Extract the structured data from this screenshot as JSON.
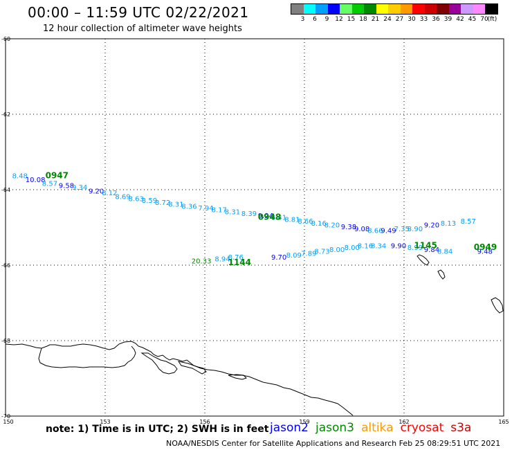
{
  "title": "00:00 – 11:59 UTC 02/22/2021",
  "subtitle": "12 hour collection of altimeter wave heights",
  "legend": {
    "colors": [
      "#808080",
      "#00ffff",
      "#00a0ff",
      "#0000ff",
      "#66ff66",
      "#00cc00",
      "#008800",
      "#ffff00",
      "#ffcc00",
      "#ff9900",
      "#ff0000",
      "#cc0000",
      "#800000",
      "#990099",
      "#cc99ff",
      "#ff88ff",
      "#000000"
    ],
    "labels": [
      "3",
      "6",
      "9",
      "12",
      "15",
      "18",
      "21",
      "24",
      "27",
      "30",
      "33",
      "36",
      "39",
      "42",
      "45",
      "70",
      "(ft)"
    ]
  },
  "axes": {
    "lon_ticks": [
      "150",
      "153",
      "156",
      "159",
      "162",
      "165"
    ],
    "lat_ticks": [
      "-60",
      "-62",
      "-64",
      "-66",
      "-68",
      "-70"
    ]
  },
  "note": "note: 1) Time is in UTC; 2) SWH is in feet",
  "satellites": [
    {
      "name": "jason2",
      "color": "#0000ff"
    },
    {
      "name": "jason3",
      "color": "#008800"
    },
    {
      "name": "altika",
      "color": "#ff9900"
    },
    {
      "name": "cryosat",
      "color": "#ff0000"
    },
    {
      "name": "s3a",
      "color": "#cc0000"
    }
  ],
  "credit": "NOAA/NESDIS Center for Satellite Applications and Research    Feb 25 08:29:51 UTC 2021",
  "track_times": [
    {
      "text": "0947",
      "color": "#008800",
      "lon": 151.2,
      "lat": -63.7
    },
    {
      "text": "0948",
      "color": "#008800",
      "lon": 157.6,
      "lat": -64.8
    },
    {
      "text": "1144",
      "color": "#008800",
      "lon": 156.7,
      "lat": -66.0
    },
    {
      "text": "1145",
      "color": "#008800",
      "lon": 162.3,
      "lat": -65.55
    },
    {
      "text": "0949",
      "color": "#008800",
      "lon": 164.1,
      "lat": -65.6
    }
  ],
  "swh_labels": [
    {
      "text": "8.48",
      "color": "#00a0ff",
      "lon": 150.2,
      "lat": -63.7
    },
    {
      "text": "10.08",
      "color": "#0000ff",
      "lon": 150.6,
      "lat": -63.8
    },
    {
      "text": "8.57",
      "color": "#00a0ff",
      "lon": 151.1,
      "lat": -63.9
    },
    {
      "text": "9.58",
      "color": "#0000ff",
      "lon": 151.6,
      "lat": -63.95
    },
    {
      "text": "9.34",
      "color": "#00a0ff",
      "lon": 152.0,
      "lat": -64.0
    },
    {
      "text": "9.20",
      "color": "#0000ff",
      "lon": 152.5,
      "lat": -64.1
    },
    {
      "text": "8.12",
      "color": "#00a0ff",
      "lon": 152.9,
      "lat": -64.15
    },
    {
      "text": "8.69",
      "color": "#00a0ff",
      "lon": 153.3,
      "lat": -64.25
    },
    {
      "text": "8.63",
      "color": "#00a0ff",
      "lon": 153.7,
      "lat": -64.3
    },
    {
      "text": "8.59",
      "color": "#00a0ff",
      "lon": 154.1,
      "lat": -64.35
    },
    {
      "text": "8.72",
      "color": "#00a0ff",
      "lon": 154.5,
      "lat": -64.4
    },
    {
      "text": "8.31",
      "color": "#00a0ff",
      "lon": 154.9,
      "lat": -64.45
    },
    {
      "text": "8.36",
      "color": "#00a0ff",
      "lon": 155.3,
      "lat": -64.5
    },
    {
      "text": "7.94",
      "color": "#00a0ff",
      "lon": 155.8,
      "lat": -64.55
    },
    {
      "text": "8.17",
      "color": "#00a0ff",
      "lon": 156.2,
      "lat": -64.6
    },
    {
      "text": "8.31",
      "color": "#00a0ff",
      "lon": 156.6,
      "lat": -64.65
    },
    {
      "text": "8.39",
      "color": "#00a0ff",
      "lon": 157.1,
      "lat": -64.7
    },
    {
      "text": "9.24",
      "color": "#0000ff",
      "lon": 157.6,
      "lat": -64.75
    },
    {
      "text": "8.41",
      "color": "#00a0ff",
      "lon": 158.0,
      "lat": -64.8
    },
    {
      "text": "8.81",
      "color": "#00a0ff",
      "lon": 158.4,
      "lat": -64.85
    },
    {
      "text": "8.66",
      "color": "#00a0ff",
      "lon": 158.8,
      "lat": -64.9
    },
    {
      "text": "8.16",
      "color": "#00a0ff",
      "lon": 159.2,
      "lat": -64.95
    },
    {
      "text": "8.20",
      "color": "#00a0ff",
      "lon": 159.6,
      "lat": -65.0
    },
    {
      "text": "9.38",
      "color": "#0000ff",
      "lon": 160.1,
      "lat": -65.05
    },
    {
      "text": "9.08",
      "color": "#0000ff",
      "lon": 160.5,
      "lat": -65.1
    },
    {
      "text": "8.66",
      "color": "#00a0ff",
      "lon": 160.9,
      "lat": -65.15
    },
    {
      "text": "9.49",
      "color": "#0000ff",
      "lon": 161.3,
      "lat": -65.15
    },
    {
      "text": "7.35",
      "color": "#00a0ff",
      "lon": 161.7,
      "lat": -65.1
    },
    {
      "text": "8.90",
      "color": "#00a0ff",
      "lon": 162.1,
      "lat": -65.1
    },
    {
      "text": "9.20",
      "color": "#0000ff",
      "lon": 162.6,
      "lat": -65.0
    },
    {
      "text": "8.13",
      "color": "#00a0ff",
      "lon": 163.1,
      "lat": -64.95
    },
    {
      "text": "8.57",
      "color": "#00a0ff",
      "lon": 163.7,
      "lat": -64.9
    },
    {
      "text": "20.33",
      "color": "#008800",
      "lon": 155.6,
      "lat": -65.95
    },
    {
      "text": "8.94",
      "color": "#00a0ff",
      "lon": 156.3,
      "lat": -65.9
    },
    {
      "text": "8.76",
      "color": "#00a0ff",
      "lon": 156.7,
      "lat": -65.85
    },
    {
      "text": "9.70",
      "color": "#0000ff",
      "lon": 158.0,
      "lat": -65.85
    },
    {
      "text": "8.09",
      "color": "#00a0ff",
      "lon": 158.45,
      "lat": -65.8
    },
    {
      "text": "7.89",
      "color": "#00a0ff",
      "lon": 158.9,
      "lat": -65.75
    },
    {
      "text": "8.73",
      "color": "#00a0ff",
      "lon": 159.3,
      "lat": -65.7
    },
    {
      "text": "8.00",
      "color": "#00a0ff",
      "lon": 159.75,
      "lat": -65.65
    },
    {
      "text": "8.00",
      "color": "#00a0ff",
      "lon": 160.2,
      "lat": -65.6
    },
    {
      "text": "8.16",
      "color": "#00a0ff",
      "lon": 160.6,
      "lat": -65.55
    },
    {
      "text": "8.34",
      "color": "#00a0ff",
      "lon": 161.0,
      "lat": -65.55
    },
    {
      "text": "9.90",
      "color": "#0000ff",
      "lon": 161.6,
      "lat": -65.55
    },
    {
      "text": "8.99",
      "color": "#00a0ff",
      "lon": 162.1,
      "lat": -65.6
    },
    {
      "text": "9.84",
      "color": "#0000ff",
      "lon": 162.6,
      "lat": -65.65
    },
    {
      "text": "8.84",
      "color": "#00a0ff",
      "lon": 163.0,
      "lat": -65.7
    },
    {
      "text": "9.48",
      "color": "#0000ff",
      "lon": 164.2,
      "lat": -65.7
    }
  ]
}
